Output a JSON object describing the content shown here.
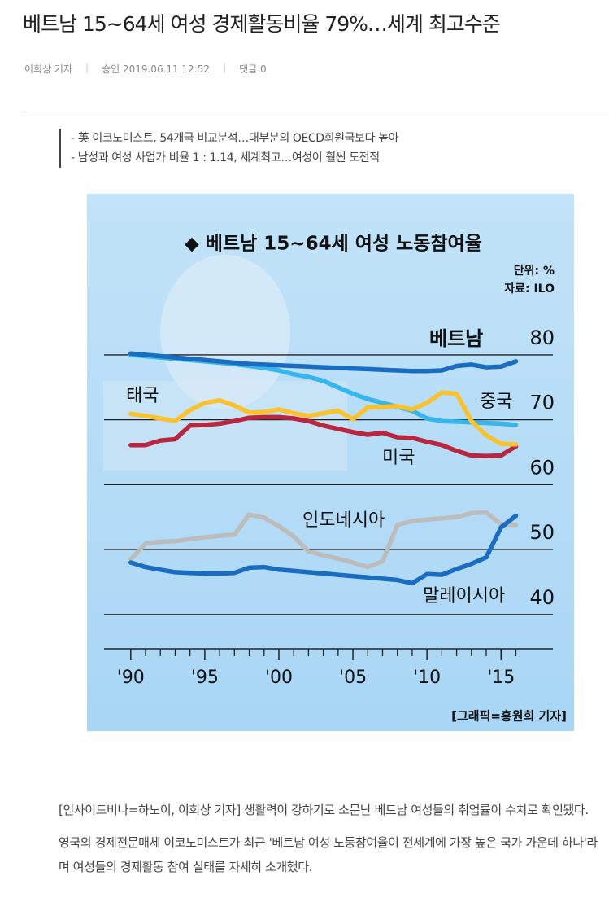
{
  "header": {
    "title": "베트남 15~64세 여성 경제활동비율 79%…세계 최고수준",
    "author": "이희상 기자",
    "approved": "승인 2019.06.11 12:52",
    "comments": "댓글 0"
  },
  "summary": [
    "- 英 이코노미스트, 54개국 비교분석…대부분의 OECD회원국보다 높아",
    "- 남성과 여성 사업가 비율 1 : 1.14, 세계최고…여성이 훨씬 도전적"
  ],
  "chart_data": {
    "type": "line",
    "title": "◆  베트남 15~64세 여성 노동참여율",
    "unit": "단위: %",
    "source": "자료: ILO",
    "credit": "[그래픽=홍원희 기자]",
    "x": [
      1990,
      1991,
      1992,
      1993,
      1994,
      1995,
      1996,
      1997,
      1998,
      1999,
      2000,
      2001,
      2002,
      2003,
      2004,
      2005,
      2006,
      2007,
      2008,
      2009,
      2010,
      2011,
      2012,
      2013,
      2014,
      2015,
      2016
    ],
    "xlim": [
      1988.2,
      2018.5
    ],
    "xticks": [
      {
        "value": 1990,
        "label": "'90"
      },
      {
        "value": 1995,
        "label": "'95"
      },
      {
        "value": 2000,
        "label": "'00"
      },
      {
        "value": 2005,
        "label": "'05"
      },
      {
        "value": 2010,
        "label": "'10"
      },
      {
        "value": 2015,
        "label": "'15"
      }
    ],
    "xticks_minor": [
      1991,
      1992,
      1993,
      1994,
      1996,
      1997,
      1998,
      1999,
      2001,
      2002,
      2003,
      2004,
      2006,
      2007,
      2008,
      2009,
      2011,
      2012,
      2013,
      2014,
      2016
    ],
    "ylim": [
      34.7,
      83
    ],
    "yticks": [
      40,
      50,
      60,
      70,
      80
    ],
    "grid": true,
    "series": [
      {
        "name": "중국",
        "color": "#35b6ef",
        "values": [
          80.0,
          79.8,
          79.6,
          79.4,
          79.2,
          79.0,
          78.8,
          78.6,
          78.3,
          78.0,
          77.6,
          77.0,
          76.6,
          76.0,
          75.0,
          74.0,
          73.2,
          72.6,
          72.0,
          71.4,
          70.2,
          69.8,
          69.7,
          69.6,
          69.5,
          69.4,
          69.2
        ]
      },
      {
        "name": "미국",
        "color": "#b9263f",
        "values": [
          66.1,
          66.1,
          66.8,
          67.0,
          69.1,
          69.2,
          69.4,
          69.8,
          70.3,
          70.4,
          70.4,
          70.2,
          69.8,
          69.1,
          68.6,
          68.1,
          67.7,
          68.0,
          67.3,
          67.2,
          66.6,
          66.1,
          65.2,
          64.5,
          64.4,
          64.5,
          65.9
        ]
      },
      {
        "name": "태국",
        "color": "#f9c22e",
        "values": [
          70.9,
          70.6,
          70.2,
          69.8,
          71.5,
          72.6,
          73.0,
          72.2,
          71.1,
          71.2,
          71.6,
          71.0,
          70.6,
          71.0,
          71.4,
          70.1,
          71.9,
          72.0,
          72.1,
          71.6,
          72.6,
          74.2,
          74.0,
          69.8,
          67.6,
          66.3,
          66.2
        ]
      },
      {
        "name": "인도네시아",
        "color": "#bdbcbc",
        "values": [
          48.5,
          50.9,
          51.2,
          51.3,
          51.6,
          51.9,
          52.1,
          52.3,
          55.4,
          54.9,
          53.6,
          52.0,
          49.7,
          49.1,
          48.6,
          48.0,
          47.3,
          48.2,
          53.8,
          54.4,
          54.6,
          54.8,
          55.0,
          55.6,
          55.7,
          53.9,
          53.8
        ]
      },
      {
        "name": "말레이시아",
        "color": "#1a6cc0",
        "values": [
          48.0,
          47.3,
          46.9,
          46.5,
          46.4,
          46.3,
          46.3,
          46.4,
          47.2,
          47.3,
          46.9,
          46.7,
          46.5,
          46.3,
          46.1,
          45.9,
          45.7,
          45.5,
          45.3,
          44.8,
          46.2,
          46.1,
          47.0,
          47.8,
          48.8,
          53.4,
          55.2
        ]
      },
      {
        "name": "베트남",
        "color": "#1a6cc0",
        "values": [
          80.2,
          80.0,
          79.8,
          79.6,
          79.4,
          79.2,
          79.0,
          78.8,
          78.6,
          78.5,
          78.4,
          78.3,
          78.2,
          78.1,
          78.0,
          77.9,
          77.8,
          77.7,
          77.6,
          77.5,
          77.5,
          77.6,
          78.3,
          78.5,
          78.1,
          78.2,
          79.0
        ]
      }
    ]
  },
  "body": [
    "[인사이드비나=하노이, 이희상 기자] 생활력이 강하기로 소문난 베트남 여성들의 취업률이 수치로 확인됐다.",
    "영국의 경제전문매체 이코노미스트가 최근 '베트남 여성 노동참여율이 전세계에 가장 높은 국가 가운데 하나'라며 여성들의 경제활동 참여 실태를 자세히 소개했다."
  ]
}
